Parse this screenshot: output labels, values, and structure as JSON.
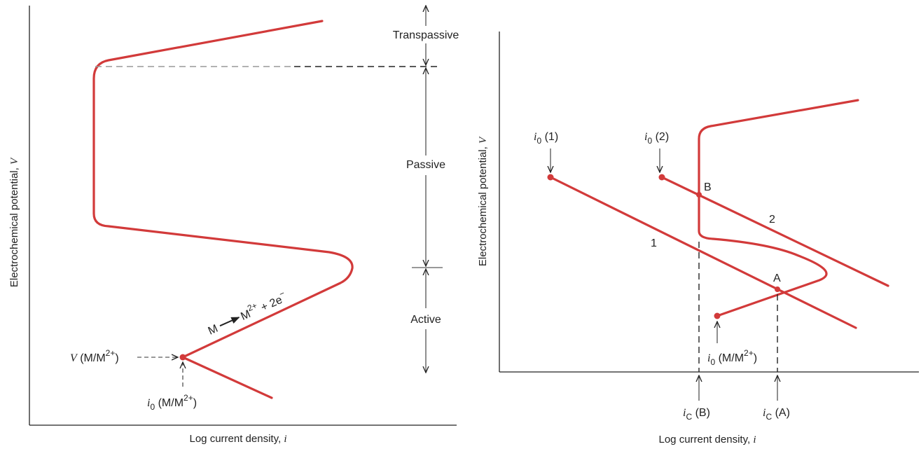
{
  "left_panel": {
    "ylabel": "Electrochemical potential,",
    "ylabel_symbol": "V",
    "xlabel": "Log current density,",
    "xlabel_symbol": "i",
    "regions": [
      "Transpassive",
      "Passive",
      "Active"
    ],
    "reaction": {
      "lhs": "M",
      "rhs_base": "M",
      "rhs_sup": "2+",
      "rest": " + 2e",
      "rest_sup": "−"
    },
    "v_label": {
      "symbol": "V",
      "text": " (M/M",
      "sup": "2+",
      "close": ")"
    },
    "i0_label": {
      "symbol": "i",
      "sub": "0",
      "text": " (M/M",
      "sup": "2+",
      "close": ")"
    }
  },
  "right_panel": {
    "ylabel": "Electrochemical potential,",
    "ylabel_symbol": "V",
    "xlabel": "Log current density,",
    "xlabel_symbol": "i",
    "i0_1": {
      "symbol": "i",
      "sub": "0",
      "text": " (1)"
    },
    "i0_2": {
      "symbol": "i",
      "sub": "0",
      "text": " (2)"
    },
    "i0_m": {
      "symbol": "i",
      "sub": "0",
      "text": " (M/M",
      "sup": "2+",
      "close": ")"
    },
    "line_1": "1",
    "line_2": "2",
    "point_b": "B",
    "point_a": "A",
    "ic_b": {
      "symbol": "i",
      "sub": "C",
      "text": " (B)"
    },
    "ic_a": {
      "symbol": "i",
      "sub": "C",
      "text": " (A)"
    }
  }
}
